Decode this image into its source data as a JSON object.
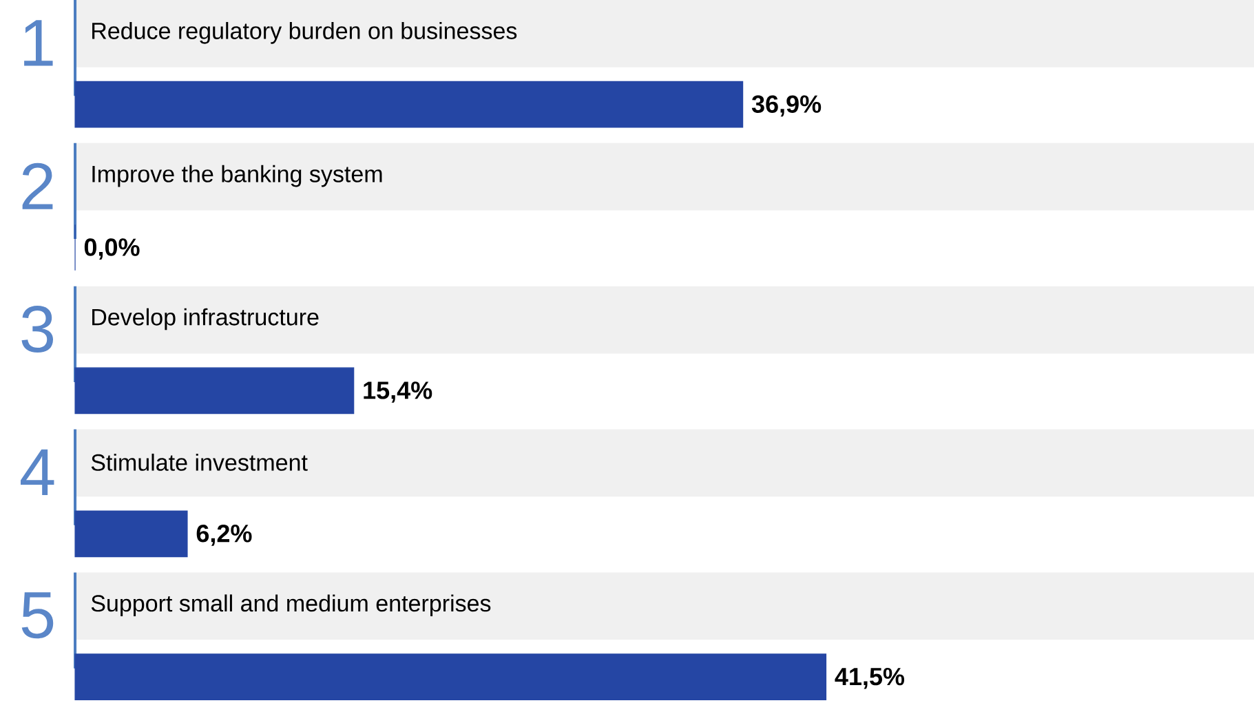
{
  "chart_data": {
    "type": "bar",
    "orientation": "horizontal",
    "color": "#2546a4",
    "categories": [
      "Reduce regulatory burden on businesses",
      "Improve the banking system",
      "Develop infrastructure",
      "Stimulate investment",
      "Support small and medium enterprises"
    ],
    "values": [
      36.9,
      0.0,
      15.4,
      6.2,
      41.5
    ],
    "value_labels": [
      "36,9%",
      "0,0%",
      "15,4%",
      "6,2%",
      "41,5%"
    ],
    "annotations": [
      "1",
      "2",
      "3",
      "4",
      "5"
    ]
  }
}
